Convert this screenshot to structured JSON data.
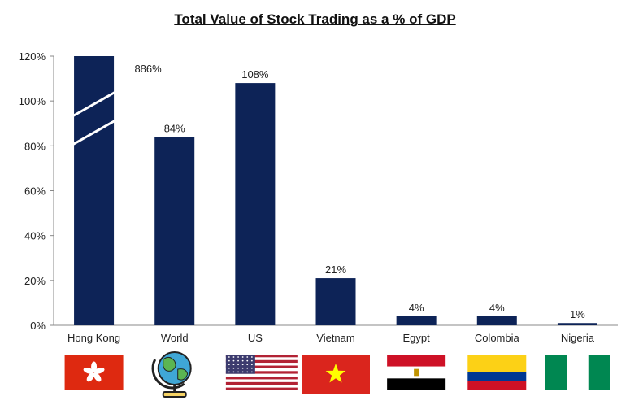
{
  "chart_data": {
    "type": "bar",
    "title": "Total Value of Stock Trading as a % of GDP",
    "xlabel": "",
    "ylabel": "",
    "categories": [
      "Hong Kong",
      "World",
      "US",
      "Vietnam",
      "Egypt",
      "Colombia",
      "Nigeria"
    ],
    "values": [
      886,
      84,
      108,
      21,
      4,
      4,
      1
    ],
    "data_labels": [
      "886%",
      "84%",
      "108%",
      "21%",
      "4%",
      "4%",
      "1%"
    ],
    "ylim": [
      0,
      120
    ],
    "yticks": [
      0,
      20,
      40,
      60,
      80,
      100,
      120
    ],
    "ytick_labels": [
      "0%",
      "20%",
      "40%",
      "60%",
      "80%",
      "100%",
      "120%"
    ],
    "axis_break": "Hong Kong",
    "grid": false,
    "legend": "none",
    "bar_color": "#0d2357",
    "category_icons": [
      "hong-kong-flag-icon",
      "globe-icon",
      "us-flag-icon",
      "vietnam-flag-icon",
      "egypt-flag-icon",
      "colombia-flag-icon",
      "nigeria-flag-icon"
    ]
  }
}
